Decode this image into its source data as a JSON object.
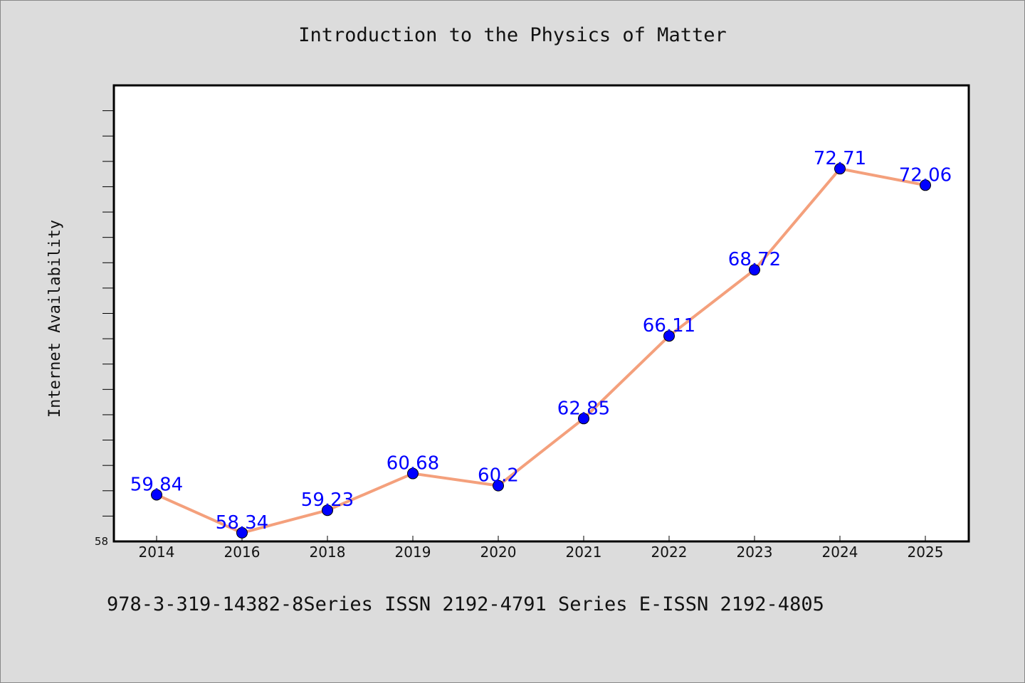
{
  "chart_data": {
    "type": "line",
    "title": "Introduction to the Physics of Matter",
    "xlabel": "",
    "ylabel": "Internet Availability",
    "categories": [
      "2014",
      "2016",
      "2018",
      "2019",
      "2020",
      "2021",
      "2022",
      "2023",
      "2024",
      "2025"
    ],
    "series": [
      {
        "values": [
          59.84,
          58.34,
          59.23,
          60.68,
          60.2,
          62.85,
          66.11,
          68.72,
          72.71,
          72.06
        ],
        "data_labels": [
          "59.84",
          "58.34",
          "59.23",
          "60.68",
          "60.2",
          "62.85",
          "66.11",
          "68.72",
          "72.71",
          "72.06"
        ],
        "line_color": "#f4a07c",
        "marker_color": "#0000ff"
      }
    ],
    "ylim": [
      58,
      76
    ],
    "y_tick_labels": [
      "58"
    ],
    "grid": false,
    "legend": "none"
  },
  "footer": {
    "text": "978-3-319-14382-8Series ISSN 2192-4791 Series E-ISSN 2192-4805"
  },
  "colors": {
    "background": "#dcdcdc",
    "plot_background": "#ffffff",
    "axis": "#000000"
  }
}
